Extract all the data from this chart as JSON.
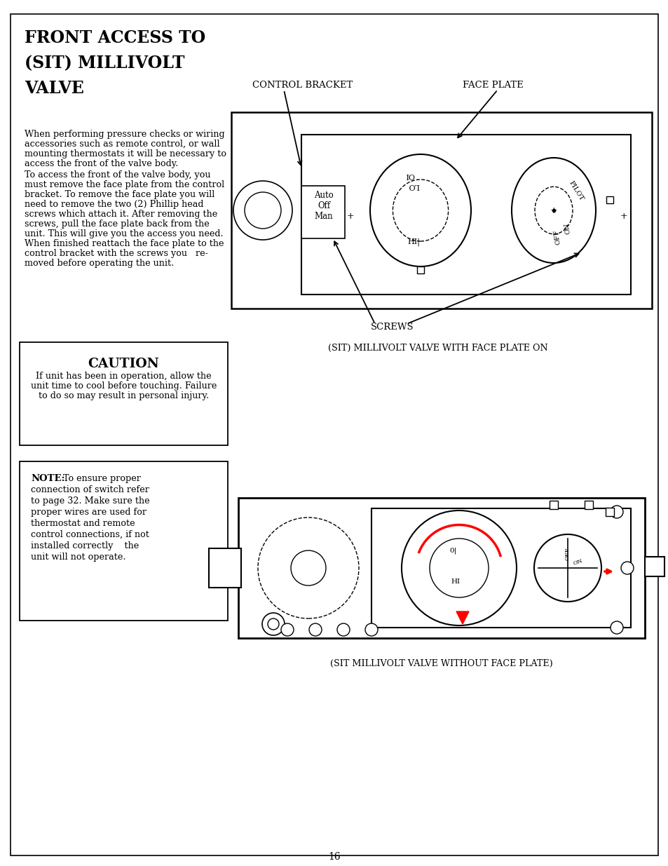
{
  "page_bg": "#ffffff",
  "border_color": "#000000",
  "text_color": "#000000",
  "line_color": "#000000",
  "title_lines": [
    "FRONT ACCESS TO",
    "(SIT) MILLIVOLT",
    "VALVE"
  ],
  "title_fontsize": 17,
  "body_lines_1": [
    "When performing pressure checks or wiring",
    "accessories such as remote control, or wall",
    "mounting thermostats it will be necessary to",
    "access the front of the valve body."
  ],
  "body_lines_2": [
    "To access the front of the valve body, you",
    "must remove the face plate from the control",
    "bracket. To remove the face plate you will",
    "need to remove the two (2) Phillip head",
    "screws which attach it. After removing the",
    "screws, pull the face plate back from the",
    "unit. This will give you the access you need.",
    "When finished reattach the face plate to the",
    "control bracket with the screws you   re-",
    "moved before operating the unit."
  ],
  "caution_title": "CAUTION",
  "caution_lines": [
    "If unit has been in operation, allow the",
    "unit time to cool before touching. Failure",
    "to do so may result in personal injury."
  ],
  "note_bold": "NOTE:",
  "note_lines": [
    "  To ensure proper",
    "connection of switch refer",
    "to page 32. Make sure the",
    "proper wires are used for",
    "thermostat and remote",
    "control connections, if not",
    "installed correctly    the",
    "unit will not operate."
  ],
  "label_control_bracket": "CONTROL BRACKET",
  "label_face_plate": "FACE PLATE",
  "label_screws": "SCREWS",
  "caption_top": "(SIT) MILLIVOLT VALVE WITH FACE PLATE ON",
  "caption_bottom": "(SIT MILLIVOLT VALVE WITHOUT FACE PLATE)",
  "page_number": "16"
}
